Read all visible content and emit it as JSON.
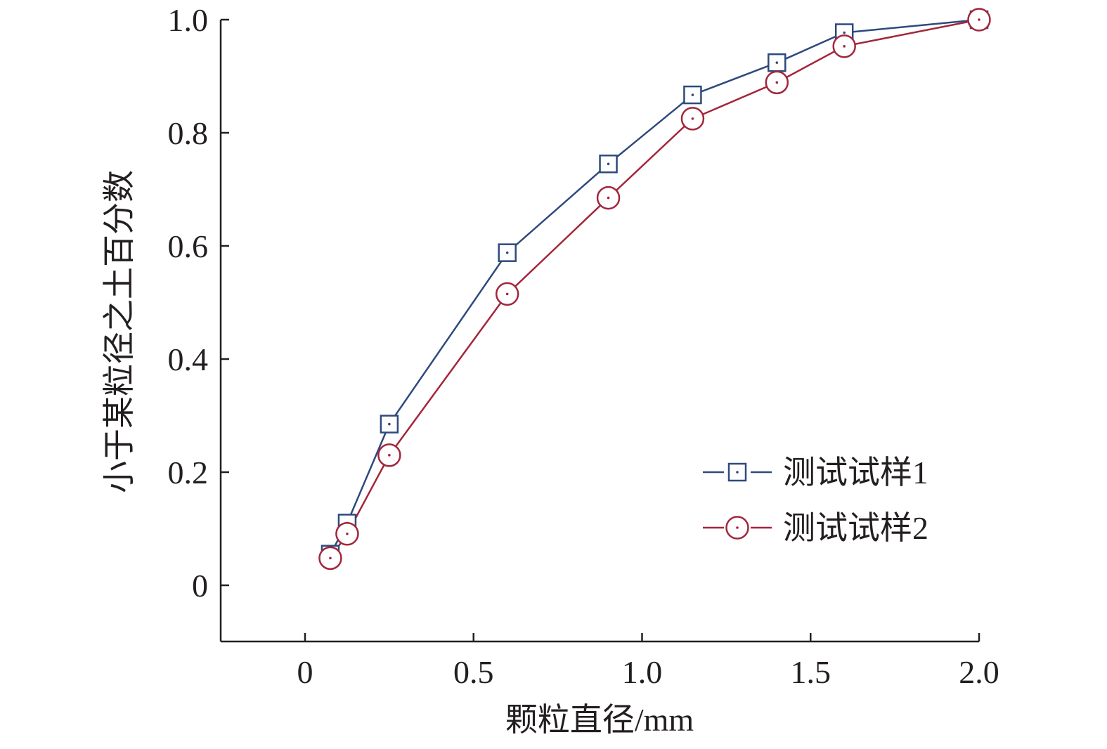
{
  "chart_data": {
    "type": "line",
    "xlabel": "颗粒直径/mm",
    "ylabel": "小于某粒径之土百分数",
    "xlim": [
      -0.25,
      2.0
    ],
    "ylim": [
      -0.1,
      1.0
    ],
    "xticks": [
      {
        "value": 0,
        "label": "0"
      },
      {
        "value": 0.5,
        "label": "0.5"
      },
      {
        "value": 1.0,
        "label": "1.0"
      },
      {
        "value": 1.5,
        "label": "1.5"
      },
      {
        "value": 2.0,
        "label": "2.0"
      }
    ],
    "yticks": [
      {
        "value": 0,
        "label": "0"
      },
      {
        "value": 0.2,
        "label": "0.2"
      },
      {
        "value": 0.4,
        "label": "0.4"
      },
      {
        "value": 0.6,
        "label": "0.6"
      },
      {
        "value": 0.8,
        "label": "0.8"
      },
      {
        "value": 1.0,
        "label": "1.0"
      }
    ],
    "grid": false,
    "legend_position": "bottom-right",
    "series": [
      {
        "name": "测试试样1",
        "marker": "square",
        "color": "#2e4a7d",
        "x": [
          0.075,
          0.125,
          0.25,
          0.6,
          0.9,
          1.15,
          1.4,
          1.6,
          2.0
        ],
        "y": [
          0.055,
          0.11,
          0.285,
          0.588,
          0.745,
          0.867,
          0.924,
          0.977,
          1.0
        ]
      },
      {
        "name": "测试试样2",
        "marker": "circle",
        "color": "#a3263b",
        "x": [
          0.075,
          0.125,
          0.25,
          0.6,
          0.9,
          1.15,
          1.4,
          1.6,
          2.0
        ],
        "y": [
          0.048,
          0.091,
          0.23,
          0.515,
          0.685,
          0.825,
          0.889,
          0.953,
          1.0
        ]
      }
    ]
  }
}
